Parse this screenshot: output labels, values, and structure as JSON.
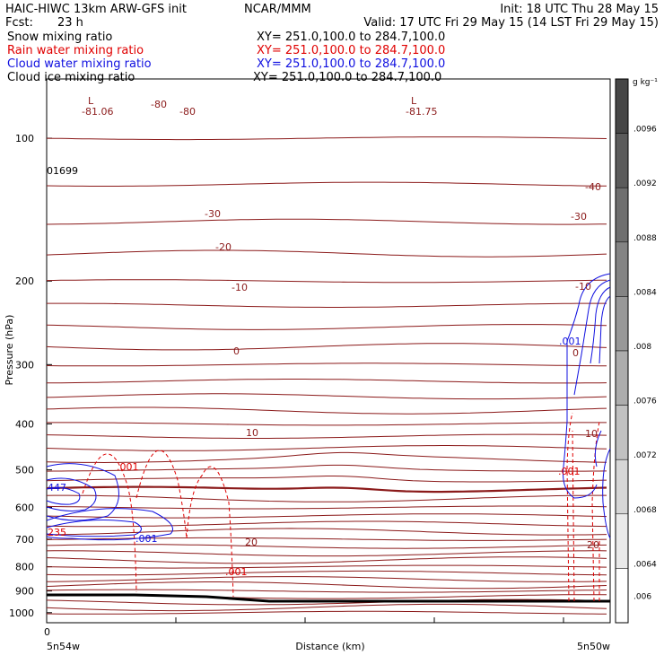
{
  "header": {
    "model_line": "HAIC-HIWC 13km ARW-GFS init",
    "org": "NCAR/MMM",
    "init": "Init: 18 UTC Thu 28 May 15",
    "fcst_label": "Fcst:",
    "fcst_value": "23 h",
    "valid": "Valid: 17 UTC Fri 29 May 15 (14 LST Fri 29 May 15)"
  },
  "fields": [
    {
      "name": "Snow mixing ratio",
      "xy": "XY= 251.0,100.0 to 284.7,100.0",
      "color": "#000000"
    },
    {
      "name": "Rain water mixing ratio",
      "xy": "XY= 251.0,100.0 to 284.7,100.0",
      "color": "#e00000"
    },
    {
      "name": "Cloud water mixing ratio",
      "xy": "XY= 251.0,100.0 to 284.7,100.0",
      "color": "#1010e0"
    },
    {
      "name": "Cloud ice mixing ratio",
      "xy": "XY= 251.0,100.0 to 284.7,100.0",
      "color": "#000000"
    }
  ],
  "chart_data": {
    "type": "cross-section contour",
    "ylabel": "Pressure (hPa)",
    "xlabel": "Distance (km)",
    "y_scale": "log",
    "ylim": [
      1050,
      75
    ],
    "y_ticks": [
      100,
      200,
      300,
      400,
      500,
      600,
      700,
      800,
      900,
      1000
    ],
    "x_tick_label": "0",
    "x_end_labels": [
      "5n54w",
      "5n50w"
    ],
    "colorbar": {
      "unit": "g kg⁻¹",
      "ticks": [
        ".0096",
        ".0092",
        ".0088",
        ".0084",
        ".008",
        ".0076",
        ".0072",
        ".0068",
        ".0064",
        ".006"
      ]
    },
    "temperature_contours": [
      {
        "label": "-80",
        "p": 108
      },
      {
        "label": "-40",
        "p": 245
      },
      {
        "label": "-30",
        "p": 300
      },
      {
        "label": "-20",
        "p": 350
      },
      {
        "label": "-10",
        "p": 445
      },
      {
        "label": "0",
        "p": 555
      },
      {
        "label": "10",
        "p": 705
      },
      {
        "label": "20",
        "p": 908
      }
    ],
    "annotations": [
      {
        "text": "L",
        "color": "#8b1a1a"
      },
      {
        "text": "-81.06",
        "color": "#8b1a1a"
      },
      {
        "text": "-80",
        "color": "#8b1a1a"
      },
      {
        "text": "-80",
        "color": "#8b1a1a"
      },
      {
        "text": "L",
        "color": "#8b1a1a"
      },
      {
        "text": "-81.75",
        "color": "#8b1a1a"
      },
      {
        "text": "01699",
        "color": "#000000"
      },
      {
        "text": "-40",
        "color": "#8b1a1a"
      },
      {
        "text": "-30",
        "color": "#8b1a1a"
      },
      {
        "text": "-30",
        "color": "#8b1a1a"
      },
      {
        "text": "-20",
        "color": "#8b1a1a"
      },
      {
        "text": "-10",
        "color": "#8b1a1a"
      },
      {
        "text": "-10",
        "color": "#8b1a1a"
      },
      {
        "text": "0",
        "color": "#8b1a1a"
      },
      {
        "text": "0",
        "color": "#8b1a1a"
      },
      {
        "text": ".001",
        "color": "#1010e0"
      },
      {
        "text": "10",
        "color": "#8b1a1a"
      },
      {
        "text": "10",
        "color": "#8b1a1a"
      },
      {
        "text": ".001",
        "color": "#e00000"
      },
      {
        "text": ".001",
        "color": "#e00000"
      },
      {
        "text": "447",
        "color": "#1010e0"
      },
      {
        "text": "235",
        "color": "#e00000"
      },
      {
        "text": ".001",
        "color": "#1010e0"
      },
      {
        "text": "20",
        "color": "#8b1a1a"
      },
      {
        "text": "20",
        "color": "#8b1a1a"
      },
      {
        "text": ".001",
        "color": "#e00000"
      }
    ]
  }
}
